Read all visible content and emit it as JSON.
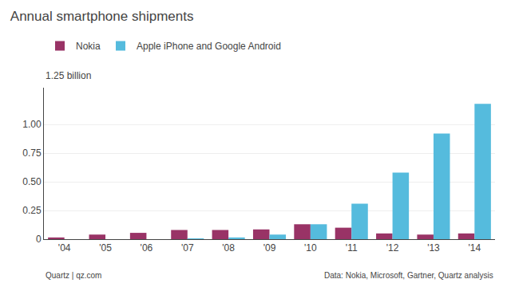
{
  "chart_data": {
    "type": "bar",
    "title": "Annual smartphone shipments",
    "categories": [
      "'04",
      "'05",
      "'06",
      "'07",
      "'08",
      "'09",
      "'10",
      "'11",
      "'12",
      "'13",
      "'14"
    ],
    "series": [
      {
        "name": "Nokia",
        "color": "#993366",
        "values": [
          0.015,
          0.04,
          0.055,
          0.08,
          0.08,
          0.085,
          0.13,
          0.1,
          0.05,
          0.04,
          0.05
        ]
      },
      {
        "name": "Apple iPhone and Google Android",
        "color": "#55BBDD",
        "values": [
          0.0,
          0.0,
          0.0,
          0.005,
          0.015,
          0.04,
          0.13,
          0.31,
          0.58,
          0.92,
          1.18
        ]
      }
    ],
    "ylim": [
      0,
      1.32
    ],
    "yticks": [
      0,
      0.25,
      {
        "value": 0.5,
        "label": "0.50"
      },
      {
        "value": 0.75,
        "label": "0.75"
      },
      {
        "value": 1.0,
        "label": "1.00"
      }
    ],
    "grid": true,
    "legend": "top left",
    "annotations": [
      "1.25 billion",
      "Quartz | qz.com",
      "Data: Nokia, Microsoft, Gartner, Quartz analysis"
    ]
  }
}
